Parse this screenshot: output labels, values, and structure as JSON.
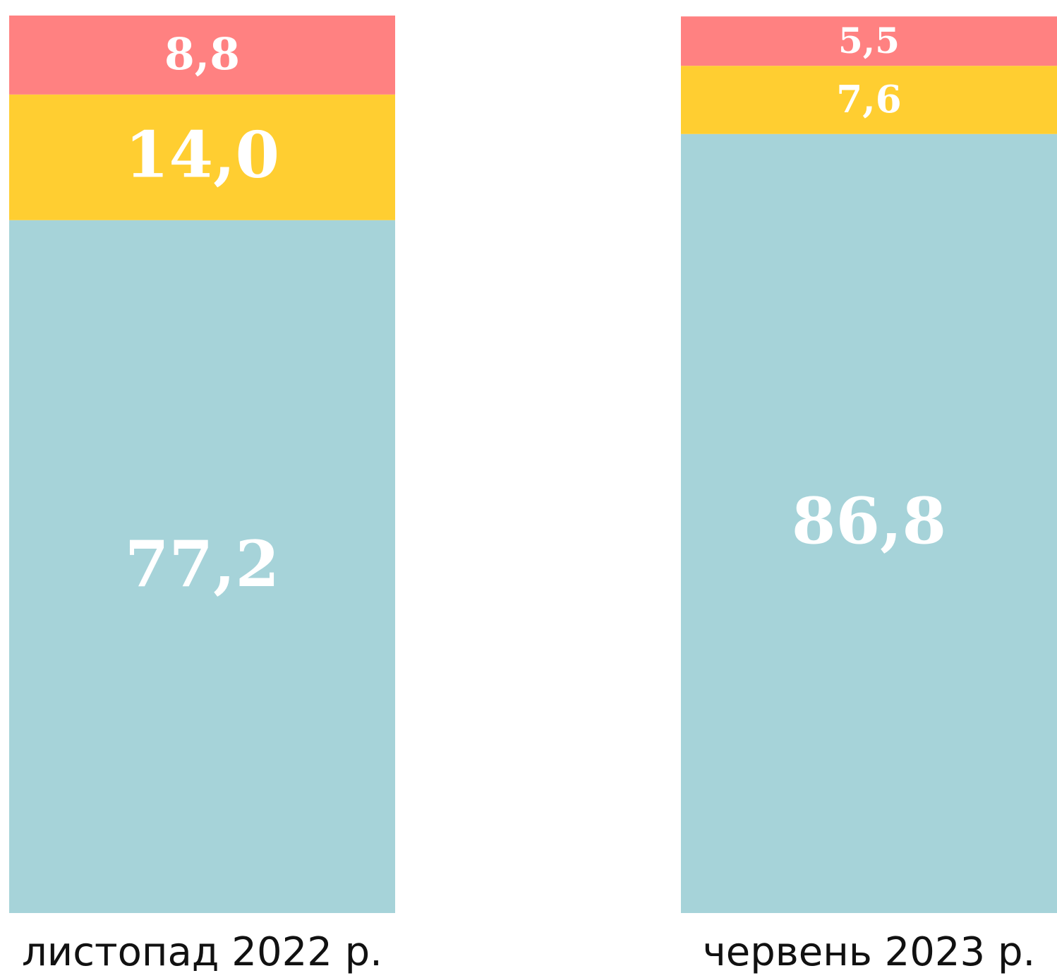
{
  "chart_data": {
    "type": "stacked_bar",
    "categories": [
      "листопад 2022 р.",
      "червень 2023 р."
    ],
    "series": [
      {
        "color": "#a6d3d9",
        "values": [
          77.2,
          86.8
        ],
        "value_labels": [
          "77,2",
          "86,8"
        ]
      },
      {
        "color": "#ffce31",
        "values": [
          14.0,
          7.6
        ],
        "value_labels": [
          "14,0",
          "7,6"
        ]
      },
      {
        "color": "#ff8181",
        "values": [
          8.8,
          5.5
        ],
        "value_labels": [
          "8,8",
          "5,5"
        ]
      }
    ],
    "ylim": [
      0,
      100
    ]
  }
}
